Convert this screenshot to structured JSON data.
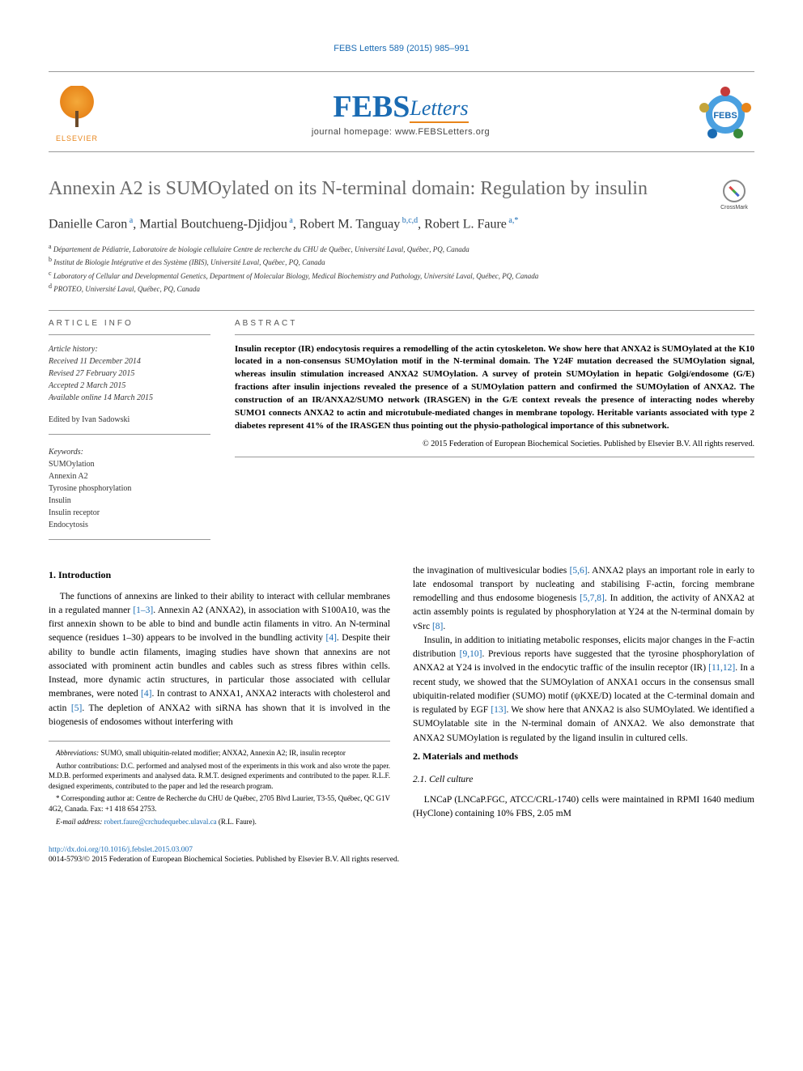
{
  "top_banner": {
    "citation": "FEBS Letters 589 (2015) 985–991",
    "url": "#"
  },
  "header": {
    "publisher": "ELSEVIER",
    "journal_name_main": "FEBS",
    "journal_name_sub": "Letters",
    "homepage_label": "journal homepage:",
    "homepage_url_text": "www.FEBSLetters.org"
  },
  "crossmark_label": "CrossMark",
  "title": "Annexin A2 is SUMOylated on its N-terminal domain: Regulation by insulin",
  "authors_html": "Danielle Caron<sup> a</sup>, Martial Boutchueng-Djidjou<sup> a</sup>, Robert M. Tanguay<sup> b,c,d</sup>, Robert L. Faure<sup> a,*</sup>",
  "affiliations": [
    "Département de Pédiatrie, Laboratoire de biologie cellulaire Centre de recherche du CHU de Québec, Université Laval, Québec, PQ, Canada",
    "Institut de Biologie Intégrative et des Système (IBIS), Université Laval, Québec, PQ, Canada",
    "Laboratory of Cellular and Developmental Genetics, Department of Molecular Biology, Medical Biochemistry and Pathology, Université Laval, Québec, PQ, Canada",
    "PROTEO, Université Laval, Québec, PQ, Canada"
  ],
  "affiliation_markers": [
    "a",
    "b",
    "c",
    "d"
  ],
  "article_info": {
    "label": "ARTICLE INFO",
    "history_header": "Article history:",
    "history": [
      "Received 11 December 2014",
      "Revised 27 February 2015",
      "Accepted 2 March 2015",
      "Available online 14 March 2015"
    ],
    "editor": "Edited by Ivan Sadowski",
    "keywords_header": "Keywords:",
    "keywords": [
      "SUMOylation",
      "Annexin A2",
      "Tyrosine phosphorylation",
      "Insulin",
      "Insulin receptor",
      "Endocytosis"
    ]
  },
  "abstract": {
    "label": "ABSTRACT",
    "text": "Insulin receptor (IR) endocytosis requires a remodelling of the actin cytoskeleton. We show here that ANXA2 is SUMOylated at the K10 located in a non-consensus SUMOylation motif in the N-terminal domain. The Y24F mutation decreased the SUMOylation signal, whereas insulin stimulation increased ANXA2 SUMOylation. A survey of protein SUMOylation in hepatic Golgi/endosome (G/E) fractions after insulin injections revealed the presence of a SUMOylation pattern and confirmed the SUMOylation of ANXA2. The construction of an IR/ANXA2/SUMO network (IRASGEN) in the G/E context reveals the presence of interacting nodes whereby SUMO1 connects ANXA2 to actin and microtubule-mediated changes in membrane topology. Heritable variants associated with type 2 diabetes represent 41% of the IRASGEN thus pointing out the physio-pathological importance of this subnetwork.",
    "copyright": "© 2015 Federation of European Biochemical Societies. Published by Elsevier B.V. All rights reserved."
  },
  "body": {
    "intro_heading": "1. Introduction",
    "intro_paragraphs": [
      "The functions of annexins are linked to their ability to interact with cellular membranes in a regulated manner <a href='#'>[1–3]</a>. Annexin A2 (ANXA2), in association with S100A10, was the first annexin shown to be able to bind and bundle actin filaments in vitro. An N-terminal sequence (residues 1–30) appears to be involved in the bundling activity <a href='#'>[4]</a>. Despite their ability to bundle actin filaments, imaging studies have shown that annexins are not associated with prominent actin bundles and cables such as stress fibres within cells. Instead, more dynamic actin structures, in particular those associated with cellular membranes, were noted <a href='#'>[4]</a>. In contrast to ANXA1, ANXA2 interacts with cholesterol and actin <a href='#'>[5]</a>. The depletion of ANXA2 with siRNA has shown that it is involved in the biogenesis of endosomes without interfering with",
      "the invagination of multivesicular bodies <a href='#'>[5,6]</a>. ANXA2 plays an important role in early to late endosomal transport by nucleating and stabilising F-actin, forcing membrane remodelling and thus endosome biogenesis <a href='#'>[5,7,8]</a>. In addition, the activity of ANXA2 at actin assembly points is regulated by phosphorylation at Y24 at the N-terminal domain by vSrc <a href='#'>[8]</a>.",
      "Insulin, in addition to initiating metabolic responses, elicits major changes in the F-actin distribution <a href='#'>[9,10]</a>. Previous reports have suggested that the tyrosine phosphorylation of ANXA2 at Y24 is involved in the endocytic traffic of the insulin receptor (IR) <a href='#'>[11,12]</a>. In a recent study, we showed that the SUMOylation of ANXA1 occurs in the consensus small ubiquitin-related modifier (SUMO) motif (ψKXE/D) located at the C-terminal domain and is regulated by EGF <a href='#'>[13]</a>. We show here that ANXA2 is also SUMOylated. We identified a SUMOylatable site in the N-terminal domain of ANXA2. We also demonstrate that ANXA2 SUMOylation is regulated by the ligand insulin in cultured cells."
    ],
    "mm_heading": "2. Materials and methods",
    "cell_heading": "2.1. Cell culture",
    "cell_para": "LNCaP (LNCaP.FGC, ATCC/CRL-1740) cells were maintained in RPMI 1640 medium (HyClone) containing 10% FBS, 2.05 mM"
  },
  "footnotes": {
    "abbrev_label": "Abbreviations:",
    "abbrev_text": "SUMO, small ubiquitin-related modifier; ANXA2, Annexin A2; IR, insulin receptor",
    "author_contrib": "Author contributions: D.C. performed and analysed most of the experiments in this work and also wrote the paper. M.D.B. performed experiments and analysed data. R.M.T. designed experiments and contributed to the paper. R.L.F. designed experiments, contributed to the paper and led the research program.",
    "corresp_label": "* Corresponding author at:",
    "corresp_text": "Centre de Recherche du CHU de Québec, 2705 Blvd Laurier, T3-55, Québec, QC G1V 4G2, Canada. Fax: +1 418 654 2753.",
    "email_label": "E-mail address:",
    "email": "robert.faure@crchudequebec.ulaval.ca",
    "email_who": "(R.L. Faure)."
  },
  "footer": {
    "doi_url": "http://dx.doi.org/10.1016/j.febslet.2015.03.007",
    "issn_line": "0014-5793/© 2015 Federation of European Biochemical Societies. Published by Elsevier B.V. All rights reserved."
  },
  "colors": {
    "link": "#1a6bb3",
    "title": "#6a6a6a",
    "elsevier_orange": "#e8851a"
  }
}
